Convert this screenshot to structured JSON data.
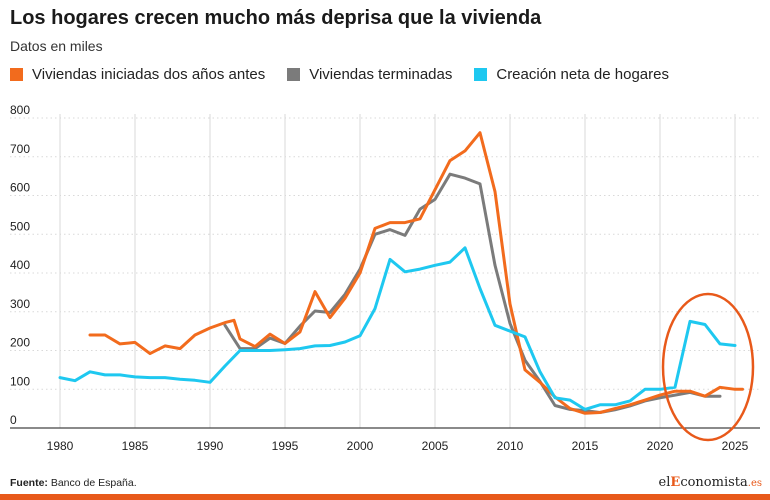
{
  "header": {
    "title": "Los hogares crecen mucho más deprisa que la vivienda",
    "subtitle": "Datos en miles"
  },
  "footer": {
    "source_label": "Fuente:",
    "source_text": "Banco de España."
  },
  "logo": {
    "prefix": "el",
    "highlight": "E",
    "rest": "conomista",
    "suffix": ".es"
  },
  "colors": {
    "iniciadas": "#f26b1d",
    "terminadas": "#7b7b7b",
    "hogares": "#1ec8f0",
    "highlight_circle": "#e8591a",
    "grid": "#d9d9d9"
  },
  "chart_data": {
    "type": "line",
    "title": "Los hogares crecen mucho más deprisa que la vivienda",
    "subtitle": "Datos en miles",
    "xlim": [
      1980,
      2025
    ],
    "ylim": [
      0,
      800
    ],
    "x_ticks": [
      1980,
      1985,
      1990,
      1995,
      2000,
      2005,
      2010,
      2015,
      2020,
      2025
    ],
    "y_ticks": [
      0,
      100,
      200,
      300,
      400,
      500,
      600,
      700,
      800
    ],
    "grid": "vertical",
    "legend_position": "top",
    "annotation": "circle highlighting 2022-2025",
    "series": [
      {
        "name": "Viviendas iniciadas dos años antes",
        "color": "#f26b1d",
        "points": [
          [
            1982,
            240
          ],
          [
            1983,
            240
          ],
          [
            1984,
            217
          ],
          [
            1985,
            221
          ],
          [
            1986,
            192
          ],
          [
            1987,
            212
          ],
          [
            1988,
            205
          ],
          [
            1989,
            240
          ],
          [
            1990,
            258
          ],
          [
            1991,
            272
          ],
          [
            1991.6,
            278
          ],
          [
            1992,
            230
          ],
          [
            1993,
            210
          ],
          [
            1994,
            242
          ],
          [
            1995,
            218
          ],
          [
            1996,
            248
          ],
          [
            1997,
            352
          ],
          [
            1998,
            285
          ],
          [
            1999,
            335
          ],
          [
            2000,
            400
          ],
          [
            2001,
            515
          ],
          [
            2002,
            530
          ],
          [
            2003,
            530
          ],
          [
            2004,
            540
          ],
          [
            2005,
            615
          ],
          [
            2006,
            690
          ],
          [
            2007,
            715
          ],
          [
            2008,
            762
          ],
          [
            2009,
            610
          ],
          [
            2010,
            320
          ],
          [
            2011,
            150
          ],
          [
            2012,
            118
          ],
          [
            2013,
            80
          ],
          [
            2014,
            50
          ],
          [
            2015,
            38
          ],
          [
            2016,
            40
          ],
          [
            2017,
            50
          ],
          [
            2018,
            60
          ],
          [
            2019,
            72
          ],
          [
            2020,
            85
          ],
          [
            2021,
            95
          ],
          [
            2022,
            95
          ],
          [
            2023,
            82
          ],
          [
            2024,
            105
          ],
          [
            2025,
            100
          ],
          [
            2025.5,
            100
          ]
        ]
      },
      {
        "name": "Viviendas terminadas",
        "color": "#7b7b7b",
        "points": [
          [
            1991,
            265
          ],
          [
            1992,
            205
          ],
          [
            1993,
            205
          ],
          [
            1994,
            232
          ],
          [
            1995,
            218
          ],
          [
            1996,
            263
          ],
          [
            1997,
            302
          ],
          [
            1998,
            298
          ],
          [
            1999,
            345
          ],
          [
            2000,
            410
          ],
          [
            2001,
            500
          ],
          [
            2002,
            512
          ],
          [
            2003,
            497
          ],
          [
            2004,
            565
          ],
          [
            2005,
            590
          ],
          [
            2006,
            655
          ],
          [
            2007,
            645
          ],
          [
            2008,
            630
          ],
          [
            2009,
            420
          ],
          [
            2010,
            270
          ],
          [
            2011,
            175
          ],
          [
            2012,
            120
          ],
          [
            2013,
            58
          ],
          [
            2014,
            48
          ],
          [
            2015,
            45
          ],
          [
            2016,
            40
          ],
          [
            2017,
            47
          ],
          [
            2018,
            57
          ],
          [
            2019,
            70
          ],
          [
            2020,
            78
          ],
          [
            2021,
            85
          ],
          [
            2022,
            92
          ],
          [
            2023,
            82
          ],
          [
            2024,
            82
          ]
        ]
      },
      {
        "name": "Creación neta de hogares",
        "color": "#1ec8f0",
        "points": [
          [
            1980,
            130
          ],
          [
            1981,
            122
          ],
          [
            1982,
            145
          ],
          [
            1983,
            137
          ],
          [
            1984,
            137
          ],
          [
            1985,
            132
          ],
          [
            1986,
            130
          ],
          [
            1987,
            130
          ],
          [
            1988,
            126
          ],
          [
            1989,
            123
          ],
          [
            1990,
            118
          ],
          [
            1991,
            160
          ],
          [
            1992,
            200
          ],
          [
            1993,
            200
          ],
          [
            1994,
            200
          ],
          [
            1995,
            202
          ],
          [
            1996,
            205
          ],
          [
            1997,
            212
          ],
          [
            1998,
            213
          ],
          [
            1999,
            222
          ],
          [
            2000,
            238
          ],
          [
            2001,
            308
          ],
          [
            2002,
            435
          ],
          [
            2003,
            403
          ],
          [
            2004,
            410
          ],
          [
            2005,
            420
          ],
          [
            2006,
            428
          ],
          [
            2007,
            465
          ],
          [
            2008,
            360
          ],
          [
            2009,
            265
          ],
          [
            2010,
            250
          ],
          [
            2011,
            235
          ],
          [
            2012,
            145
          ],
          [
            2013,
            78
          ],
          [
            2014,
            72
          ],
          [
            2015,
            48
          ],
          [
            2016,
            60
          ],
          [
            2017,
            60
          ],
          [
            2018,
            70
          ],
          [
            2019,
            100
          ],
          [
            2020,
            100
          ],
          [
            2021,
            105
          ],
          [
            2022,
            275
          ],
          [
            2023,
            267
          ],
          [
            2024,
            217
          ],
          [
            2025,
            213
          ]
        ]
      }
    ]
  }
}
